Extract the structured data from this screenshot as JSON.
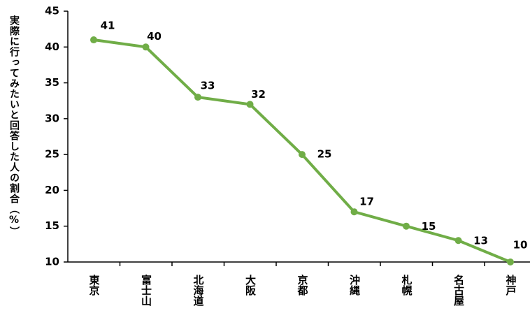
{
  "chart_data": {
    "type": "line",
    "y_label": "実際に行ってみたいと回答した人の割合（%）",
    "categories": [
      "東京",
      "富士山",
      "北海道",
      "大阪",
      "京都",
      "沖縄",
      "札幌",
      "名古屋",
      "神戸"
    ],
    "series": [
      {
        "name": "割合",
        "color": "#70ad47",
        "values": [
          41,
          40,
          33,
          32,
          25,
          17,
          15,
          13,
          10
        ]
      }
    ],
    "ylim": [
      10,
      45
    ],
    "yticks": [
      10,
      15,
      20,
      25,
      30,
      35,
      40,
      45
    ]
  }
}
